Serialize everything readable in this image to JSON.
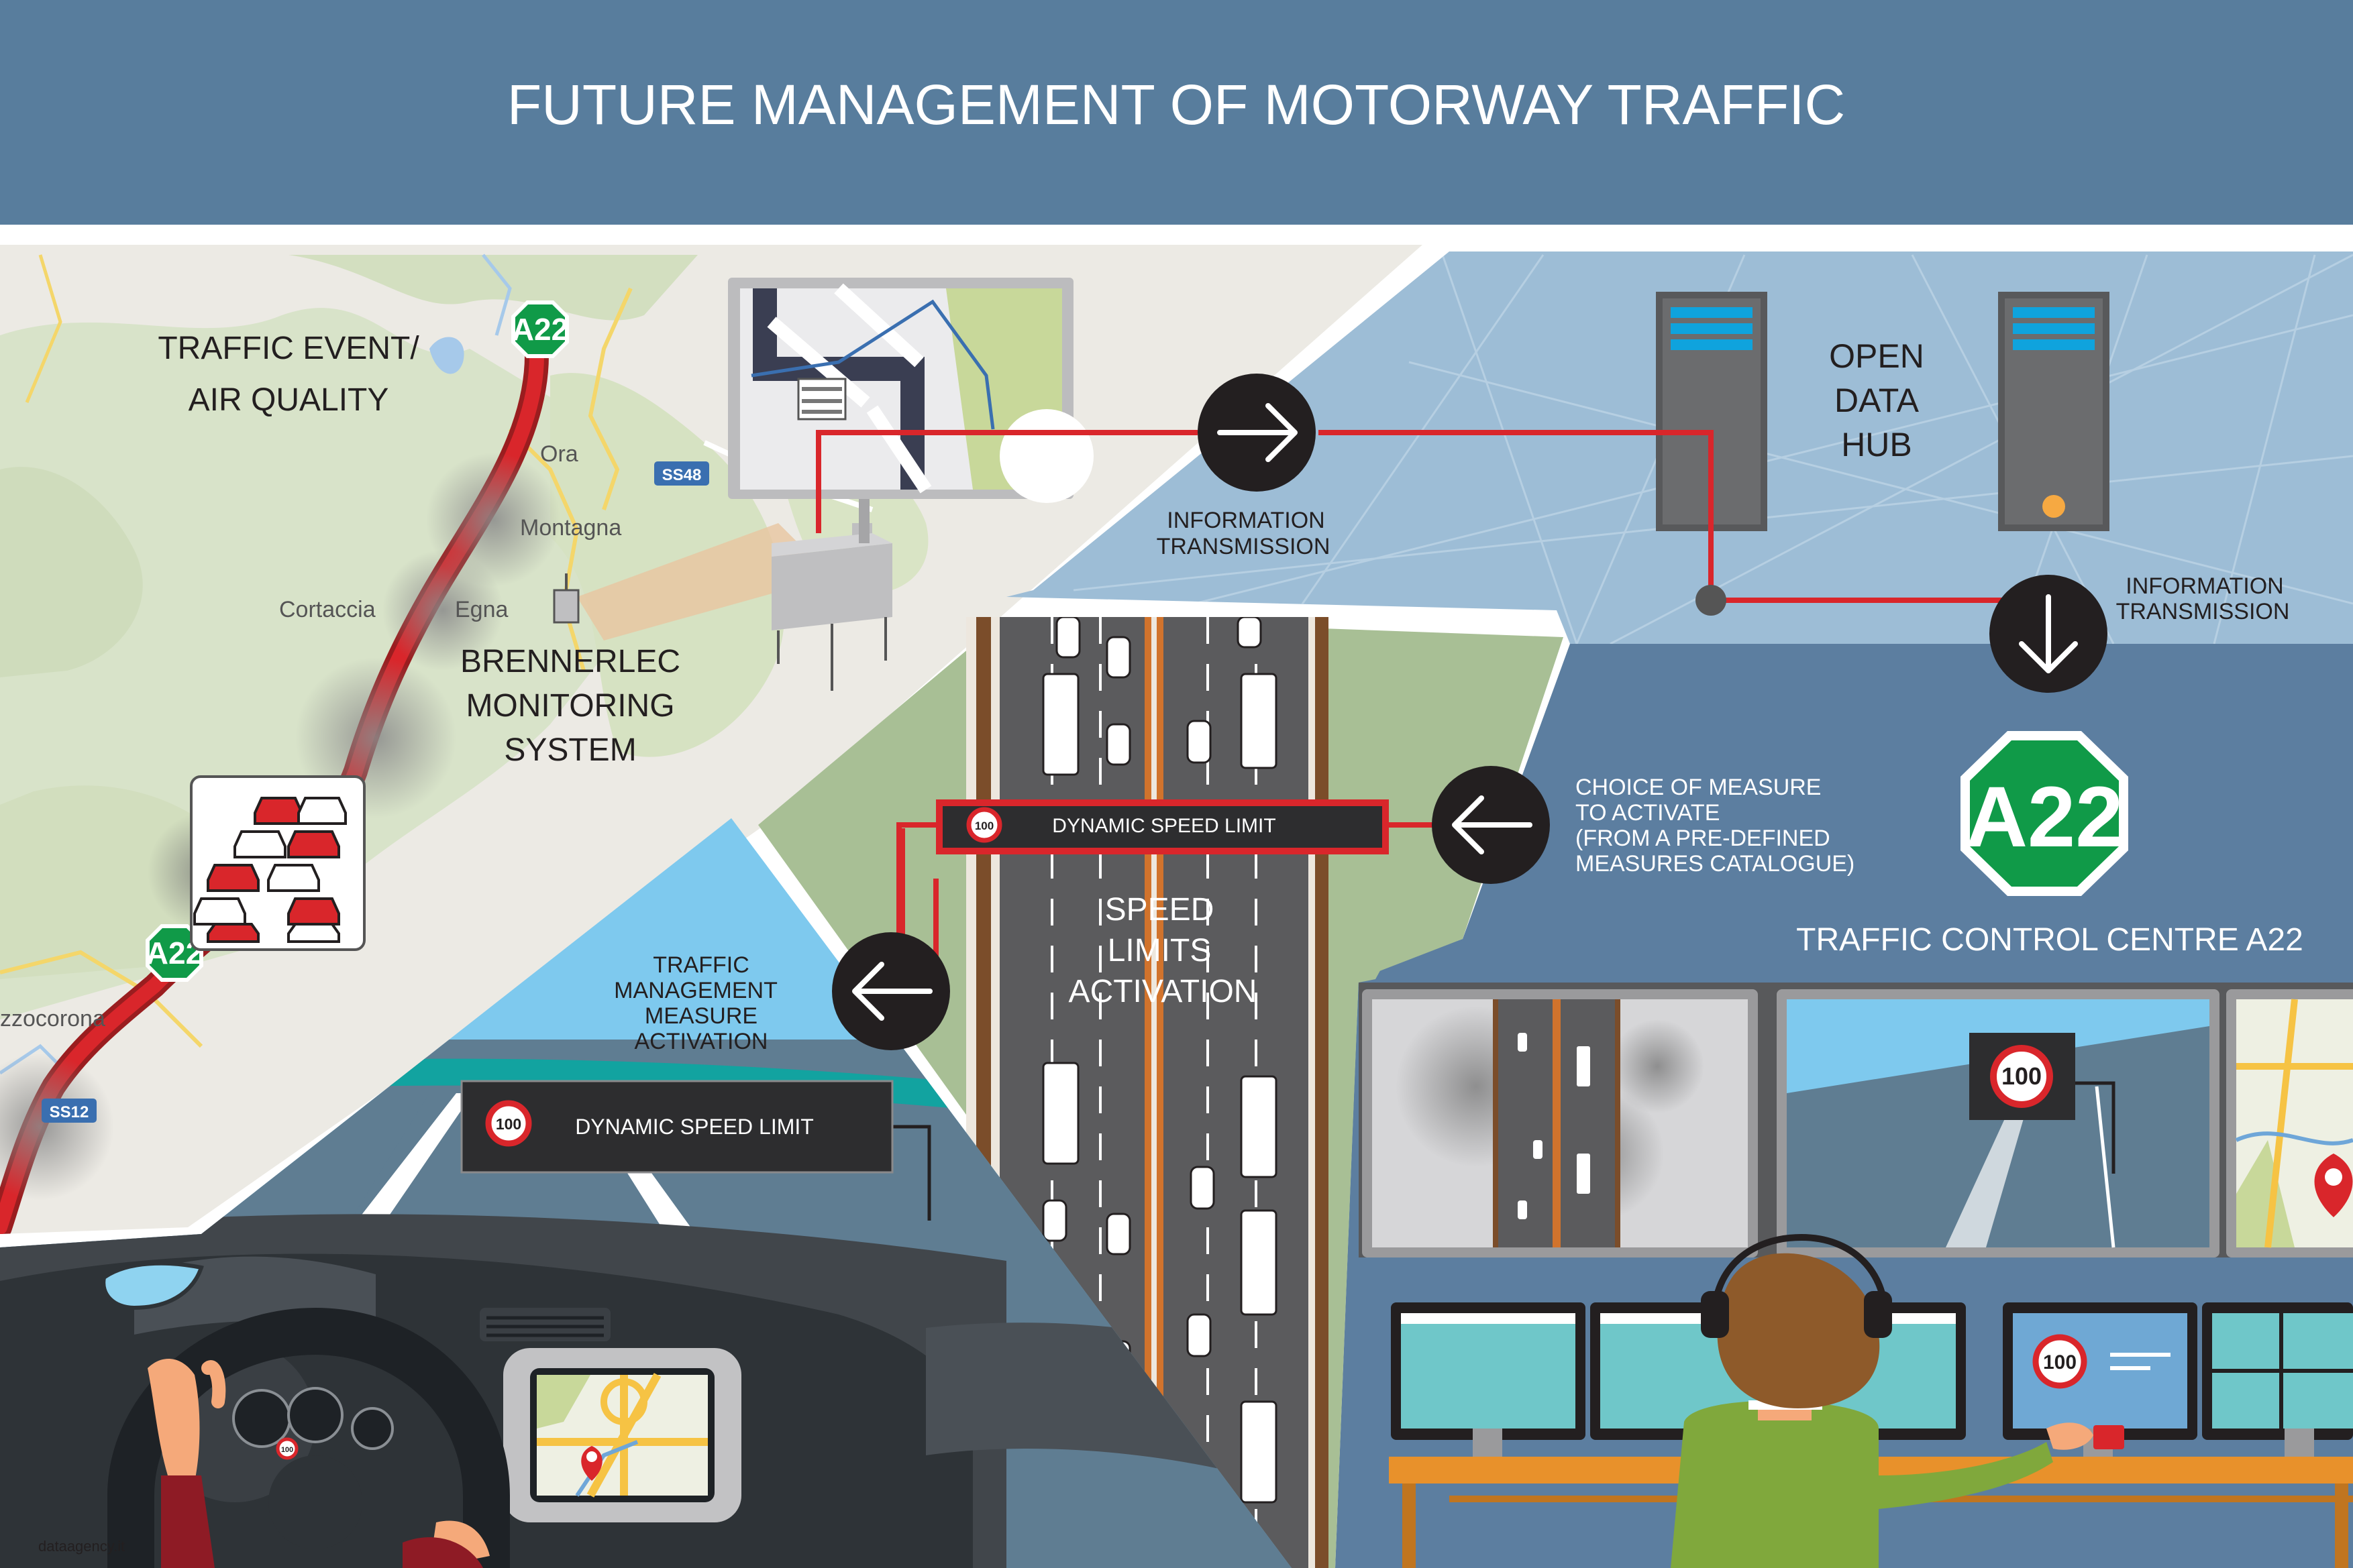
{
  "header": {
    "title": "FUTURE MANAGEMENT OF MOTORWAY TRAFFIC"
  },
  "map": {
    "title_line1": "TRAFFIC EVENT/",
    "title_line2": "AIR QUALITY",
    "places": [
      "Ora",
      "Montagna",
      "Cortaccia",
      "Egna",
      "zzocorona"
    ],
    "road_badges": [
      "SS48",
      "SS12"
    ],
    "motorway_badge": "A22"
  },
  "monitoring": {
    "line1": "BRENNERLEC",
    "line2": "MONITORING",
    "line3": "SYSTEM"
  },
  "data_hub": {
    "line1": "OPEN",
    "line2": "DATA",
    "line3": "HUB"
  },
  "flow": {
    "info_transmission_1": [
      "INFORMATION",
      "TRANSMISSION"
    ],
    "info_transmission_2": [
      "INFORMATION",
      "TRANSMISSION"
    ],
    "choice_of_measure": [
      "CHOICE OF MEASURE",
      "TO ACTIVATE",
      "(FROM A PRE-DEFINED",
      "MEASURES CATALOGUE)"
    ],
    "traffic_measure": [
      "TRAFFIC",
      "MANAGEMENT",
      "MEASURE",
      "ACTIVATION"
    ]
  },
  "motorway": {
    "sign_label": "DYNAMIC SPEED LIMIT",
    "sign_speed": "100",
    "activation": [
      "SPEED",
      "LIMITS",
      "ACTIVATION"
    ]
  },
  "driver": {
    "sign_label": "DYNAMIC SPEED LIMIT",
    "sign_speed": "100",
    "dash_speed": "100"
  },
  "control_centre": {
    "title": "TRAFFIC CONTROL CENTRE A22",
    "badge": "A22",
    "screen_speed": "100",
    "monitor_speed": "100"
  },
  "credit": "dataagency.it",
  "colors": {
    "header_bg": "#587d9d",
    "accent_red": "#d9262b",
    "motorway_green": "#109a48",
    "sky_blue": "#7ec9ee",
    "hub_blue": "#9dbdd6",
    "centre_blue": "#5c7ea0",
    "asphalt": "#5b5b5d",
    "dark": "#231f20"
  },
  "icons": [
    "arrow-right-icon",
    "arrow-down-icon",
    "arrow-left-icon",
    "speed-limit-icon",
    "server-icon",
    "map-pin-icon",
    "headset-icon",
    "car-icon",
    "truck-icon"
  ]
}
